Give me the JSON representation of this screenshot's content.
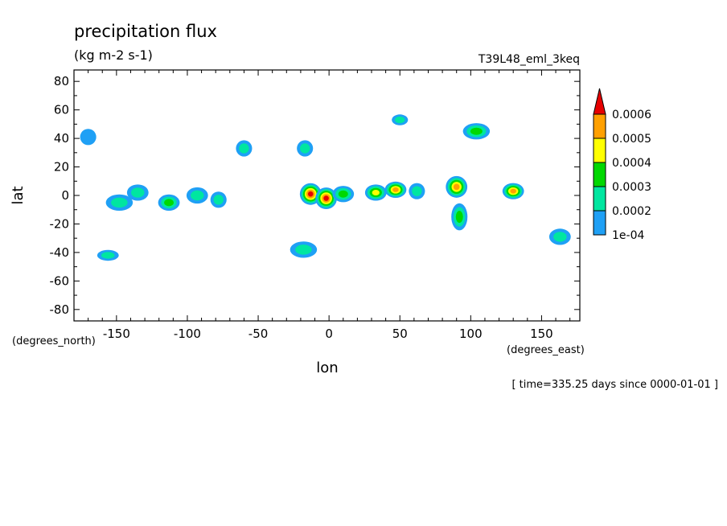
{
  "chart_data": {
    "type": "heatmap",
    "title": "precipitation flux",
    "units": "(kg m-2 s-1)",
    "dataset": "T39L48_eml_3keq",
    "xlabel": "lon",
    "ylabel": "lat",
    "x_units": "(degrees_east)",
    "y_units": "(degrees_north)",
    "time_label": "[ time=335.25 days since 0000-01-01 ]",
    "xlim": [
      -180,
      177
    ],
    "ylim": [
      -88,
      88
    ],
    "x_ticks": [
      -150,
      -100,
      -50,
      0,
      50,
      100,
      150
    ],
    "y_ticks": [
      80,
      60,
      40,
      20,
      0,
      -20,
      -40,
      -60,
      -80
    ],
    "colorbar": {
      "levels": [
        "1e-04",
        "0.0002",
        "0.0003",
        "0.0004",
        "0.0005",
        "0.0006"
      ],
      "colors": [
        "#1fa0f5",
        "#00e6a0",
        "#00d800",
        "#ffff00",
        "#ffa000",
        "#e60000"
      ]
    },
    "features": [
      {
        "lon": -148,
        "lat": -5,
        "rx": 5,
        "ry": 3,
        "level": 2
      },
      {
        "lon": -135,
        "lat": 2,
        "rx": 4,
        "ry": 3,
        "level": 2
      },
      {
        "lon": -113,
        "lat": -5,
        "rx": 4,
        "ry": 3,
        "level": 3
      },
      {
        "lon": -93,
        "lat": 0,
        "rx": 4,
        "ry": 3,
        "level": 2
      },
      {
        "lon": -78,
        "lat": -3,
        "rx": 3,
        "ry": 3,
        "level": 2
      },
      {
        "lon": -13,
        "lat": 1,
        "rx": 4,
        "ry": 4,
        "level": 6
      },
      {
        "lon": -2,
        "lat": -2,
        "rx": 4,
        "ry": 4,
        "level": 6
      },
      {
        "lon": 10,
        "lat": 1,
        "rx": 4,
        "ry": 3,
        "level": 3
      },
      {
        "lon": 33,
        "lat": 2,
        "rx": 4,
        "ry": 3,
        "level": 4
      },
      {
        "lon": 47,
        "lat": 4,
        "rx": 4,
        "ry": 3,
        "level": 5
      },
      {
        "lon": 62,
        "lat": 3,
        "rx": 3,
        "ry": 3,
        "level": 2
      },
      {
        "lon": 90,
        "lat": 6,
        "rx": 4,
        "ry": 4,
        "level": 5
      },
      {
        "lon": 130,
        "lat": 3,
        "rx": 4,
        "ry": 3,
        "level": 5
      },
      {
        "lon": 104,
        "lat": 45,
        "rx": 5,
        "ry": 3,
        "level": 3
      },
      {
        "lon": -18,
        "lat": -38,
        "rx": 5,
        "ry": 3,
        "level": 2
      },
      {
        "lon": -156,
        "lat": -42,
        "rx": 4,
        "ry": 2,
        "level": 2
      },
      {
        "lon": 163,
        "lat": -29,
        "rx": 4,
        "ry": 3,
        "level": 2
      },
      {
        "lon": -17,
        "lat": 33,
        "rx": 3,
        "ry": 3,
        "level": 2
      },
      {
        "lon": 50,
        "lat": 53,
        "rx": 3,
        "ry": 2,
        "level": 2
      },
      {
        "lon": -60,
        "lat": 33,
        "rx": 3,
        "ry": 3,
        "level": 2
      },
      {
        "lon": 92,
        "lat": -15,
        "rx": 3,
        "ry": 5,
        "level": 3
      },
      {
        "lon": -170,
        "lat": 41,
        "rx": 3,
        "ry": 3,
        "level": 1
      }
    ]
  }
}
